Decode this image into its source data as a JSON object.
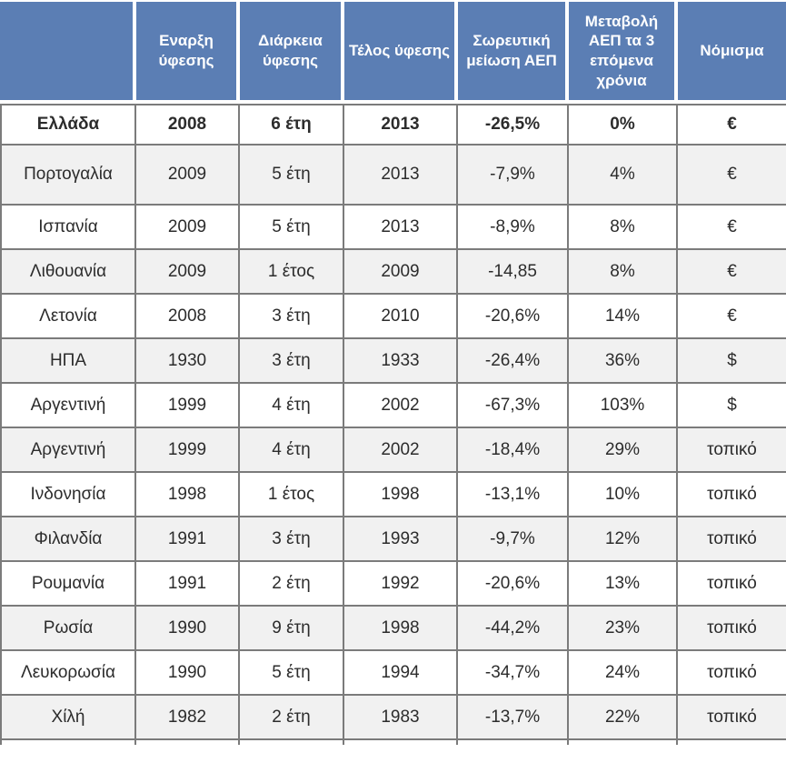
{
  "chart_data": {
    "type": "table",
    "title": "",
    "columns": [
      "",
      "Εναρξη ύφεσης",
      "Διάρκεια ύφεσης",
      "Τέλος ύφεσης",
      "Σωρευτική μείωση ΑΕΠ",
      "Μεταβολή ΑΕΠ τα 3 επόμενα χρόνια",
      "Νόμισμα"
    ],
    "column_roles": [
      "country",
      "recession_start",
      "recession_duration",
      "recession_end",
      "cumulative_gdp_decline",
      "gdp_change_next_3_years",
      "currency"
    ],
    "rows": [
      [
        "Ελλάδα",
        "2008",
        "6 έτη",
        "2013",
        "-26,5%",
        "0%",
        "€"
      ],
      [
        "Πορτογαλία",
        "2009",
        "5 έτη",
        "2013",
        "-7,9%",
        "4%",
        "€"
      ],
      [
        "Ισπανία",
        "2009",
        "5 έτη",
        "2013",
        "-8,9%",
        "8%",
        "€"
      ],
      [
        "Λιθουανία",
        "2009",
        "1 έτος",
        "2009",
        "-14,85",
        "8%",
        "€"
      ],
      [
        "Λετονία",
        "2008",
        "3 έτη",
        "2010",
        "-20,6%",
        "14%",
        "€"
      ],
      [
        "ΗΠΑ",
        "1930",
        "3 έτη",
        "1933",
        "-26,4%",
        "36%",
        "$"
      ],
      [
        "Αργεντινή",
        "1999",
        "4 έτη",
        "2002",
        "-67,3%",
        "103%",
        "$"
      ],
      [
        "Αργεντινή",
        "1999",
        "4 έτη",
        "2002",
        "-18,4%",
        "29%",
        "τοπικό"
      ],
      [
        "Ινδονησία",
        "1998",
        "1 έτος",
        "1998",
        "-13,1%",
        "10%",
        "τοπικό"
      ],
      [
        "Φιλανδία",
        "1991",
        "3 έτη",
        "1993",
        "-9,7%",
        "12%",
        "τοπικό"
      ],
      [
        "Ρουμανία",
        "1991",
        "2 έτη",
        "1992",
        "-20,6%",
        "13%",
        "τοπικό"
      ],
      [
        "Ρωσία",
        "1990",
        "9 έτη",
        "1998",
        "-44,2%",
        "23%",
        "τοπικό"
      ],
      [
        "Λευκορωσία",
        "1990",
        "5 έτη",
        "1994",
        "-34,7%",
        "24%",
        "τοπικό"
      ],
      [
        "Χίλή",
        "1982",
        "2 έτη",
        "1983",
        "-13,7%",
        "22%",
        "τοπικό"
      ]
    ],
    "bold_rows": [
      0
    ],
    "layout_hints": {
      "striped": true,
      "first_data_row_bold": true,
      "grid_on": true
    }
  },
  "colors": {
    "header_bg": "#5b7eb4",
    "header_text": "#ffffff",
    "row_bg": "#ffffff",
    "row_alt_bg": "#f1f1f1",
    "grid_border": "#7b7b7b",
    "body_text": "#2c2c2c"
  }
}
